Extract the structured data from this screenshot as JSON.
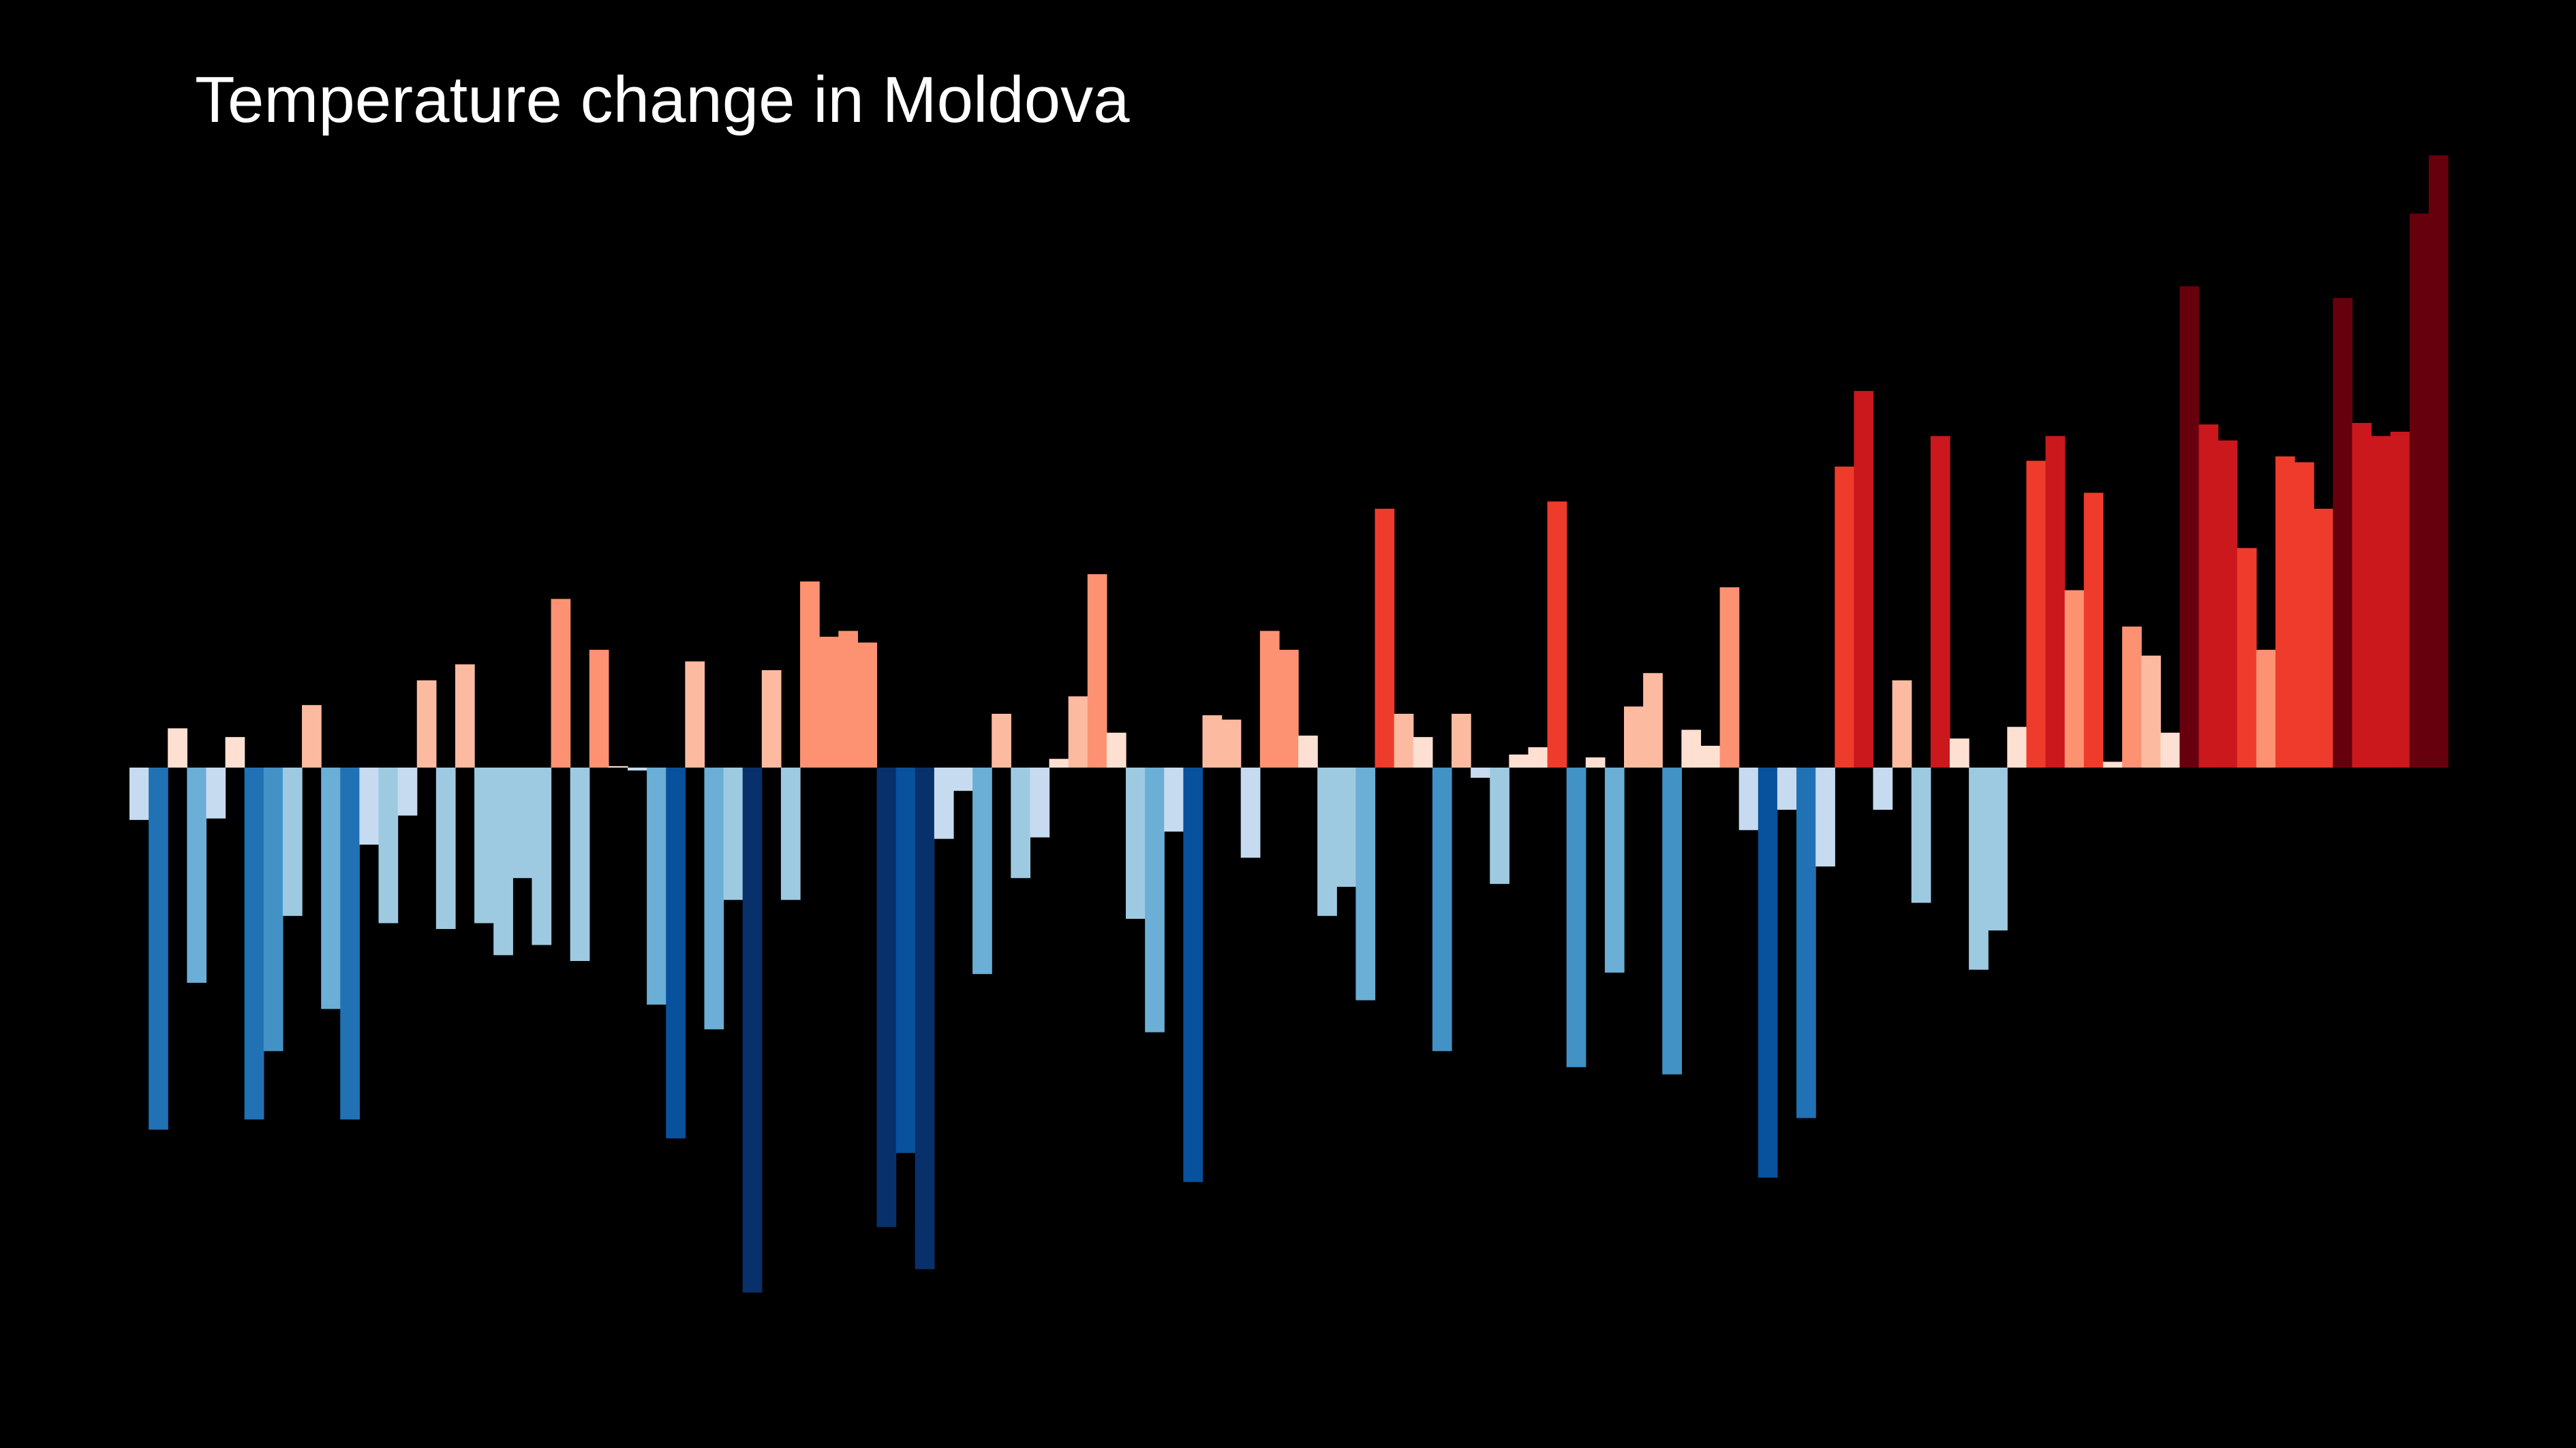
{
  "chart_data": {
    "type": "bar",
    "title": "Temperature change in Moldova",
    "xlabel": "",
    "ylabel": "",
    "grid": false,
    "legend": "none",
    "ylim": [
      -3.6,
      4.2
    ],
    "values": [
      -0.36,
      -2.49,
      0.27,
      -1.48,
      -0.35,
      0.21,
      -2.42,
      -1.95,
      -1.02,
      0.43,
      -1.66,
      -2.42,
      -0.53,
      -1.07,
      -0.33,
      0.6,
      -1.11,
      0.71,
      -1.07,
      -1.29,
      -0.76,
      -1.22,
      1.16,
      -1.33,
      0.81,
      0.01,
      -0.02,
      -1.63,
      -2.55,
      0.73,
      -1.8,
      -0.91,
      -3.61,
      0.67,
      -0.91,
      1.28,
      0.9,
      0.94,
      0.86,
      -3.16,
      -2.65,
      -3.45,
      -0.49,
      -0.16,
      -1.42,
      0.37,
      -0.76,
      -0.48,
      0.06,
      0.49,
      1.33,
      0.24,
      -1.04,
      -1.82,
      -0.44,
      -2.85,
      0.36,
      0.33,
      -0.62,
      0.94,
      0.81,
      0.22,
      -1.02,
      -0.82,
      -1.6,
      1.78,
      0.37,
      0.21,
      -1.95,
      0.37,
      -0.07,
      -0.8,
      0.09,
      0.14,
      1.83,
      -2.06,
      0.07,
      -1.41,
      0.42,
      0.65,
      -2.11,
      0.26,
      0.15,
      1.24,
      -0.43,
      -2.82,
      -0.29,
      -2.41,
      -0.68,
      2.07,
      2.59,
      -0.29,
      0.6,
      -0.93,
      2.28,
      0.2,
      -1.39,
      -1.12,
      0.28,
      2.11,
      2.28,
      1.22,
      1.89,
      0.04,
      0.97,
      0.77,
      0.24,
      3.31,
      2.36,
      2.25,
      1.51,
      0.81,
      2.14,
      2.1,
      1.78,
      3.23,
      2.37,
      2.28,
      2.31,
      3.81,
      4.21
    ]
  }
}
